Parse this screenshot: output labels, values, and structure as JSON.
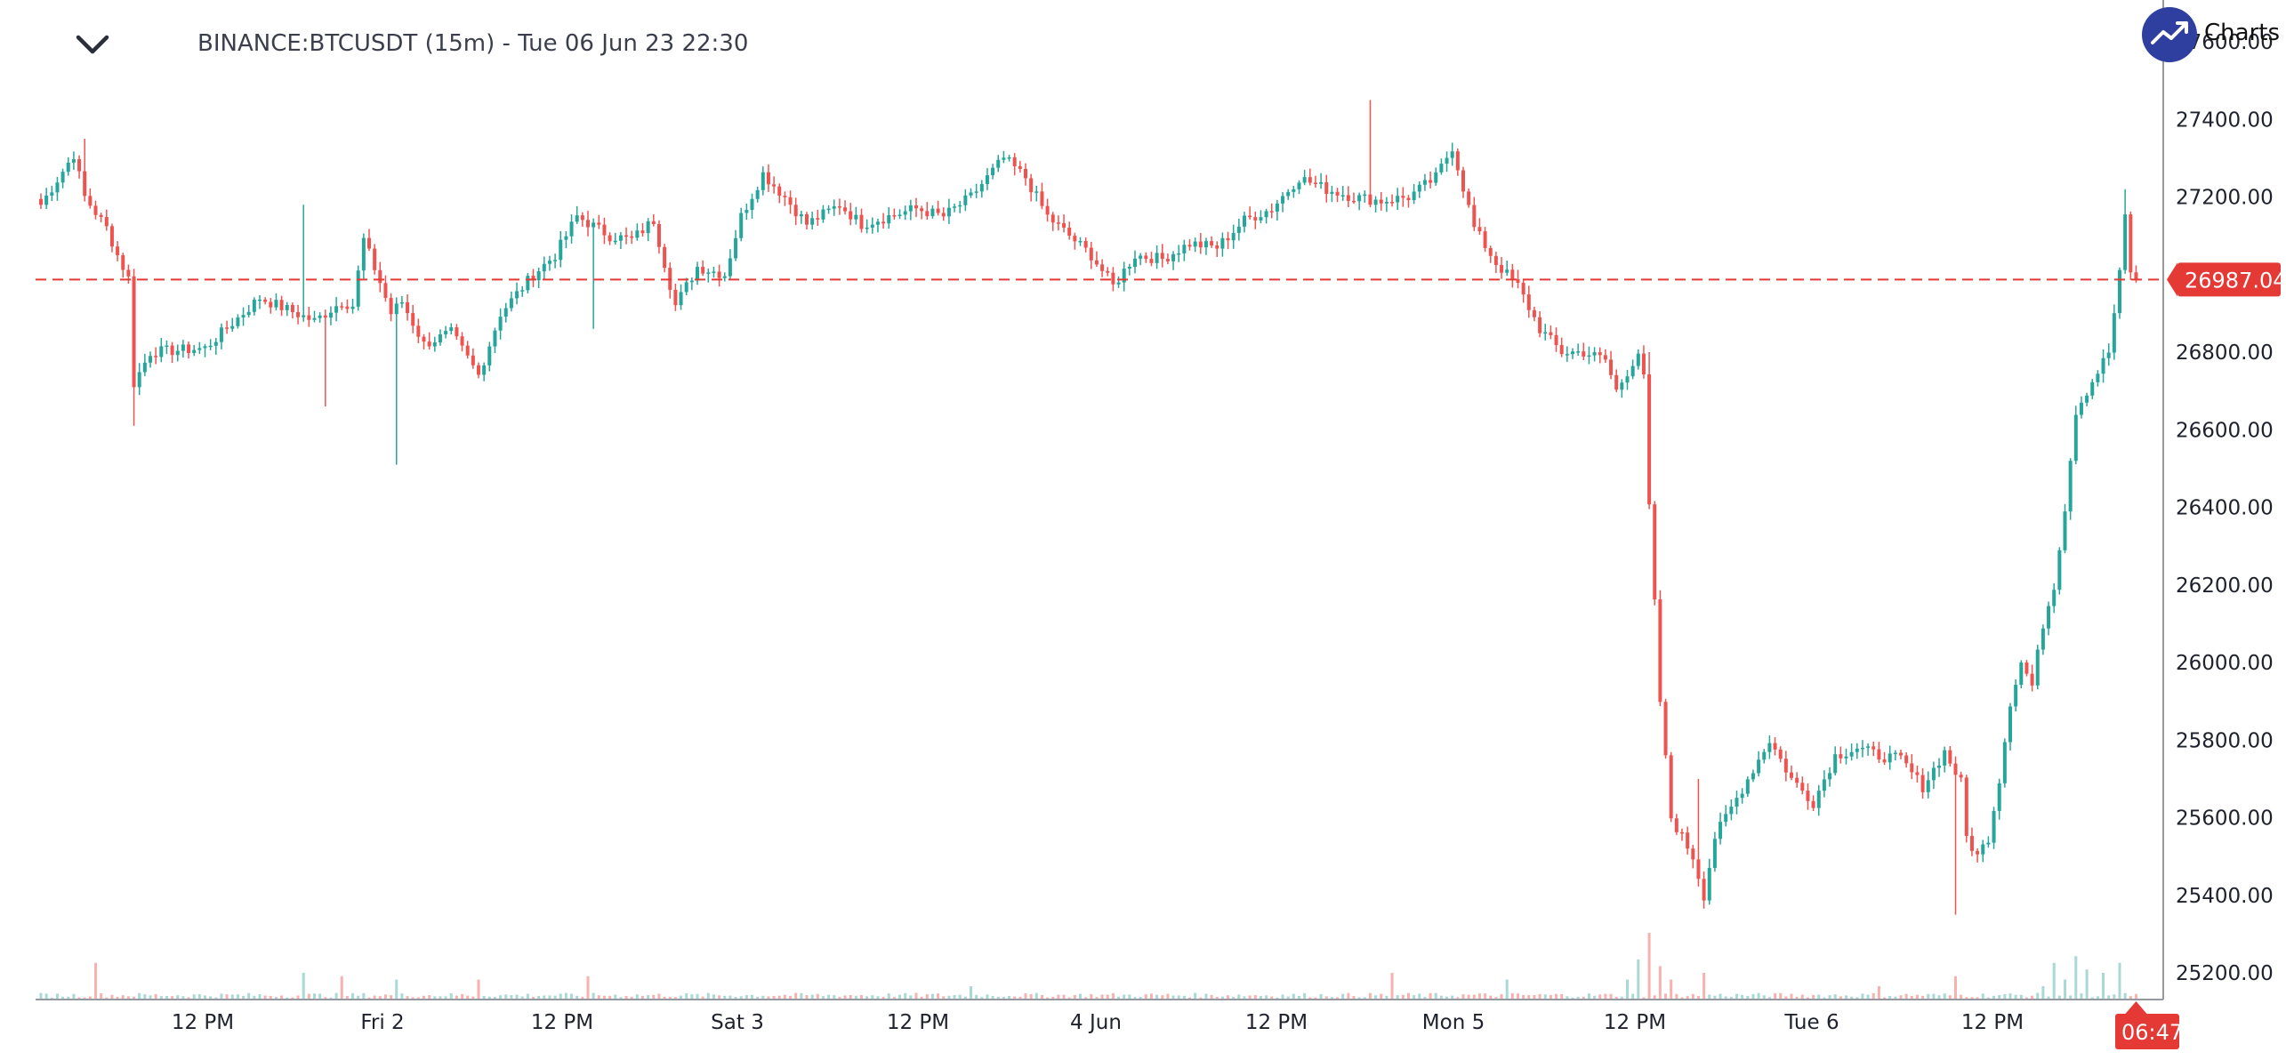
{
  "header": {
    "title": "BINANCE:BTCUSDT (15m) - Tue 06 Jun 23 22:30",
    "logo_text": "Charts"
  },
  "colors": {
    "up": "#26a69a",
    "down": "#ef5350",
    "vol_up": "#a9d9d4",
    "vol_down": "#f7b2b0",
    "price_line": "#e53935",
    "logo": "#2f3fa0"
  },
  "chart_data": {
    "type": "candlestick",
    "symbol": "BINANCE:BTCUSDT",
    "interval": "15m",
    "ylim": [
      25100,
      27600
    ],
    "y_ticks": [
      "27600.00",
      "27400.00",
      "27200.00",
      "27000.00",
      "26800.00",
      "26600.00",
      "26400.00",
      "26200.00",
      "26000.00",
      "25800.00",
      "25600.00",
      "25400.00",
      "25200.00"
    ],
    "x_ticks": [
      "12 PM",
      "Fri 2",
      "12 PM",
      "Sat 3",
      "12 PM",
      "4 Jun",
      "12 PM",
      "Mon 5",
      "12 PM",
      "Tue 6",
      "12 PM"
    ],
    "current_price": 26987.04,
    "countdown": "06:47",
    "price_path": [
      [
        0,
        27180
      ],
      [
        6,
        27310
      ],
      [
        8,
        27200
      ],
      [
        12,
        27120
      ],
      [
        14,
        27050
      ],
      [
        16,
        26990
      ],
      [
        17,
        26720
      ],
      [
        20,
        26800
      ],
      [
        30,
        26810
      ],
      [
        40,
        26940
      ],
      [
        50,
        26880
      ],
      [
        55,
        26930
      ],
      [
        57,
        26920
      ],
      [
        59,
        27090
      ],
      [
        62,
        26980
      ],
      [
        64,
        26900
      ],
      [
        66,
        26930
      ],
      [
        70,
        26820
      ],
      [
        75,
        26850
      ],
      [
        80,
        26740
      ],
      [
        84,
        26900
      ],
      [
        90,
        27000
      ],
      [
        94,
        27050
      ],
      [
        98,
        27150
      ],
      [
        104,
        27100
      ],
      [
        108,
        27090
      ],
      [
        112,
        27140
      ],
      [
        114,
        27030
      ],
      [
        116,
        26920
      ],
      [
        120,
        27020
      ],
      [
        125,
        27000
      ],
      [
        128,
        27150
      ],
      [
        132,
        27260
      ],
      [
        136,
        27200
      ],
      [
        140,
        27130
      ],
      [
        146,
        27180
      ],
      [
        150,
        27130
      ],
      [
        155,
        27150
      ],
      [
        160,
        27170
      ],
      [
        165,
        27150
      ],
      [
        170,
        27200
      ],
      [
        176,
        27300
      ],
      [
        180,
        27250
      ],
      [
        184,
        27150
      ],
      [
        188,
        27100
      ],
      [
        192,
        27050
      ],
      [
        196,
        26970
      ],
      [
        200,
        27050
      ],
      [
        205,
        27040
      ],
      [
        210,
        27080
      ],
      [
        215,
        27070
      ],
      [
        220,
        27140
      ],
      [
        225,
        27170
      ],
      [
        230,
        27250
      ],
      [
        235,
        27220
      ],
      [
        240,
        27200
      ],
      [
        245,
        27190
      ],
      [
        250,
        27200
      ],
      [
        255,
        27250
      ],
      [
        258,
        27330
      ],
      [
        262,
        27120
      ],
      [
        266,
        27030
      ],
      [
        270,
        26970
      ],
      [
        274,
        26860
      ],
      [
        278,
        26800
      ],
      [
        282,
        26800
      ],
      [
        286,
        26780
      ],
      [
        288,
        26700
      ],
      [
        292,
        26800
      ],
      [
        293,
        26730
      ],
      [
        294,
        26400
      ],
      [
        296,
        25900
      ],
      [
        298,
        25600
      ],
      [
        302,
        25500
      ],
      [
        304,
        25400
      ],
      [
        306,
        25550
      ],
      [
        310,
        25650
      ],
      [
        316,
        25800
      ],
      [
        320,
        25700
      ],
      [
        324,
        25640
      ],
      [
        328,
        25760
      ],
      [
        332,
        25780
      ],
      [
        336,
        25760
      ],
      [
        340,
        25750
      ],
      [
        344,
        25680
      ],
      [
        348,
        25770
      ],
      [
        351,
        25690
      ],
      [
        352,
        25550
      ],
      [
        354,
        25500
      ],
      [
        356,
        25550
      ],
      [
        358,
        25700
      ],
      [
        360,
        25900
      ],
      [
        362,
        26000
      ],
      [
        364,
        25940
      ],
      [
        366,
        26100
      ],
      [
        368,
        26200
      ],
      [
        370,
        26400
      ],
      [
        372,
        26650
      ],
      [
        374,
        26700
      ],
      [
        376,
        26750
      ],
      [
        378,
        26800
      ],
      [
        380,
        27000
      ],
      [
        381,
        27150
      ],
      [
        382,
        27010
      ],
      [
        383,
        26987
      ]
    ],
    "spikes": [
      [
        8,
        "high",
        27350
      ],
      [
        17,
        "low",
        26610
      ],
      [
        52,
        "low",
        26660
      ],
      [
        65,
        "low",
        26510
      ],
      [
        48,
        "high",
        27180
      ],
      [
        101,
        "low",
        26860
      ],
      [
        119,
        "low",
        26960
      ],
      [
        243,
        "high",
        27450
      ],
      [
        294,
        "high",
        26800
      ],
      [
        303,
        "high",
        25700
      ],
      [
        350,
        "low",
        25350
      ],
      [
        381,
        "high",
        27220
      ]
    ],
    "volume_spikes": [
      [
        10,
        0.55
      ],
      [
        48,
        0.4
      ],
      [
        55,
        0.35
      ],
      [
        65,
        0.3
      ],
      [
        80,
        0.3
      ],
      [
        100,
        0.35
      ],
      [
        170,
        0.2
      ],
      [
        247,
        0.4
      ],
      [
        268,
        0.3
      ],
      [
        290,
        0.3
      ],
      [
        292,
        0.6
      ],
      [
        294,
        1.0
      ],
      [
        296,
        0.5
      ],
      [
        298,
        0.3
      ],
      [
        304,
        0.4
      ],
      [
        336,
        0.2
      ],
      [
        350,
        0.35
      ],
      [
        366,
        0.2
      ],
      [
        368,
        0.55
      ],
      [
        370,
        0.3
      ],
      [
        372,
        0.65
      ],
      [
        374,
        0.45
      ],
      [
        377,
        0.4
      ],
      [
        380,
        0.55
      ]
    ]
  }
}
